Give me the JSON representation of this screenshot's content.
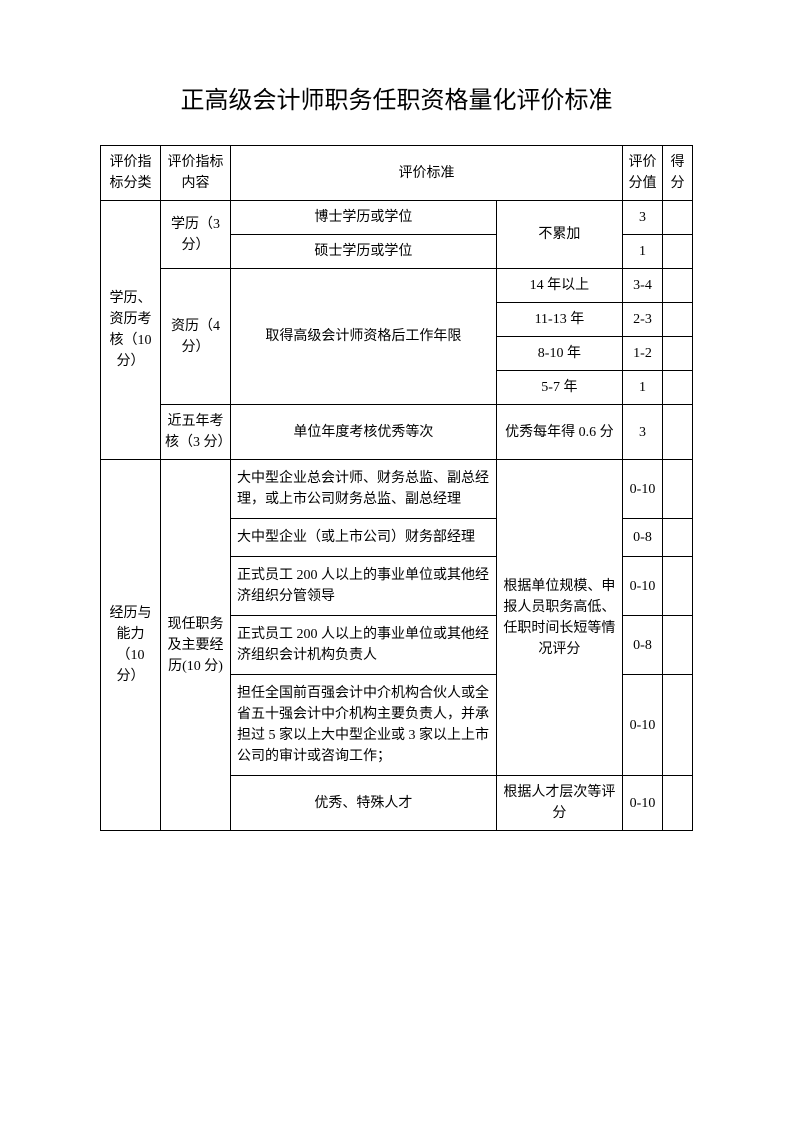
{
  "title": "正高级会计师职务任职资格量化评价标准",
  "headers": {
    "category": "评价指标分类",
    "content": "评价指标内容",
    "standard": "评价标准",
    "score_range": "评价分值",
    "score": "得分"
  },
  "section1": {
    "category": "学历、资历考核（10 分）",
    "education": {
      "label": "学历（3 分）",
      "item1": "博士学历或学位",
      "item2": "硕士学历或学位",
      "note": "不累加",
      "score1": "3",
      "score2": "1"
    },
    "experience": {
      "label": "资历（4 分）",
      "desc": "取得高级会计师资格后工作年限",
      "year1": "14 年以上",
      "s1": "3-4",
      "year2": "11-13 年",
      "s2": "2-3",
      "year3": "8-10 年",
      "s3": "1-2",
      "year4": "5-7 年",
      "s4": "1"
    },
    "assessment": {
      "label": "近五年考核（3 分）",
      "desc": "单位年度考核优秀等次",
      "note": "优秀每年得 0.6 分",
      "score": "3"
    }
  },
  "section2": {
    "category": "经历与能力（10 分）",
    "content": "现任职务及主要经历(10 分)",
    "note1": "根据单位规模、申报人员职务高低、任职时间长短等情况评分",
    "item1": "大中型企业总会计师、财务总监、副总经理，或上市公司财务总监、副总经理",
    "s1": "0-10",
    "item2": "大中型企业（或上市公司）财务部经理",
    "s2": "0-8",
    "item3": "正式员工 200 人以上的事业单位或其他经济组织分管领导",
    "s3": "0-10",
    "item4": "正式员工 200 人以上的事业单位或其他经济组织会计机构负责人",
    "s4": "0-8",
    "item5": "担任全国前百强会计中介机构合伙人或全省五十强会计中介机构主要负责人，并承担过 5 家以上大中型企业或 3 家以上上市公司的审计或咨询工作；",
    "s5": "0-10",
    "item6": "优秀、特殊人才",
    "note2": "根据人才层次等评分",
    "s6": "0-10"
  }
}
